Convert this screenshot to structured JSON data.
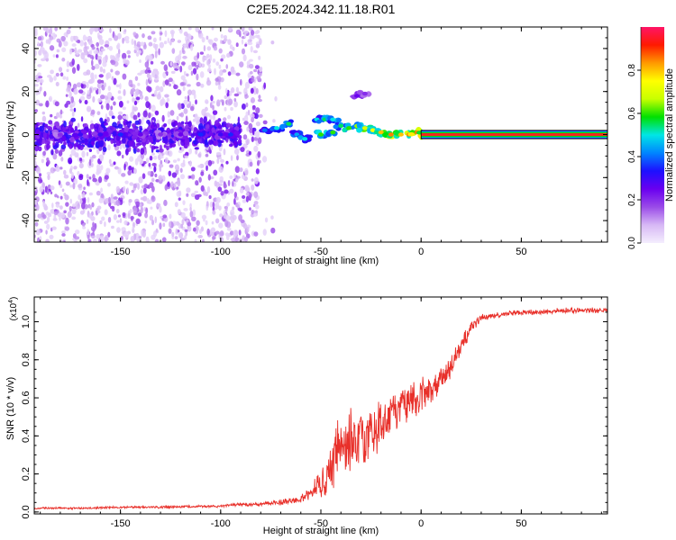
{
  "chart_data": [
    {
      "type": "heatmap",
      "title": "C2E5.2024.342.11.18.R01",
      "xlabel": "Height of straight line (km)",
      "ylabel": "Frequency (Hz)",
      "xlim": [
        -193,
        93
      ],
      "ylim": [
        -50,
        50
      ],
      "x_ticks": [
        -150,
        -100,
        -50,
        0,
        50
      ],
      "y_ticks": [
        -40,
        -20,
        0,
        20,
        40
      ],
      "colorbar": {
        "label": "Normalized spectral amplitude",
        "range": [
          0,
          1
        ],
        "ticks": [
          0.0,
          0.2,
          0.4,
          0.6,
          0.8
        ],
        "stops": [
          "#f4eefe",
          "#d7b8f5",
          "#9a4be8",
          "#6a00f0",
          "#1d10ff",
          "#0085ff",
          "#00e6e6",
          "#00e000",
          "#c8ff00",
          "#ffff00",
          "#ff9900",
          "#ff1a00",
          "#ff1466"
        ]
      },
      "line_band": {
        "x_start": 0,
        "x_end": 93,
        "y": 0,
        "half_width": 1.5,
        "colors": [
          "#ff2020",
          "#00d000",
          "#00c8e0",
          "#2020ff"
        ]
      },
      "noise_region": {
        "x_start": -193,
        "x_end": -80,
        "frequency_spread": 50
      },
      "ridge_points": [
        {
          "x": -180,
          "y": 0,
          "a": 0.2
        },
        {
          "x": -170,
          "y": 0,
          "a": 0.3
        },
        {
          "x": -160,
          "y": 0,
          "a": 0.3
        },
        {
          "x": -150,
          "y": 0,
          "a": 0.35
        },
        {
          "x": -140,
          "y": 0,
          "a": 0.25
        },
        {
          "x": -130,
          "y": 0,
          "a": 0.2
        },
        {
          "x": -120,
          "y": 0,
          "a": 0.25
        },
        {
          "x": -110,
          "y": 0,
          "a": 0.35
        },
        {
          "x": -100,
          "y": 0,
          "a": 0.3
        },
        {
          "x": -95,
          "y": 0,
          "a": 0.35
        },
        {
          "x": -78,
          "y": 2,
          "a": 0.4
        },
        {
          "x": -72,
          "y": 3,
          "a": 0.5
        },
        {
          "x": -66,
          "y": 5,
          "a": 0.55
        },
        {
          "x": -62,
          "y": 0,
          "a": 0.45
        },
        {
          "x": -58,
          "y": -2,
          "a": 0.5
        },
        {
          "x": -52,
          "y": 7,
          "a": 0.5
        },
        {
          "x": -48,
          "y": 7,
          "a": 0.55
        },
        {
          "x": -44,
          "y": 7,
          "a": 0.5
        },
        {
          "x": -50,
          "y": 0,
          "a": 0.6
        },
        {
          "x": -44,
          "y": 1,
          "a": 0.6
        },
        {
          "x": -40,
          "y": 4,
          "a": 0.55
        },
        {
          "x": -36,
          "y": 3,
          "a": 0.6
        },
        {
          "x": -32,
          "y": 4,
          "a": 0.65
        },
        {
          "x": -28,
          "y": 3,
          "a": 0.7
        },
        {
          "x": -24,
          "y": 2,
          "a": 0.75
        },
        {
          "x": -20,
          "y": 1,
          "a": 0.8
        },
        {
          "x": -15,
          "y": 0,
          "a": 0.85
        },
        {
          "x": -10,
          "y": 0,
          "a": 0.8
        },
        {
          "x": -6,
          "y": 0,
          "a": 0.85
        },
        {
          "x": -2,
          "y": 1,
          "a": 0.85
        },
        {
          "x": 2,
          "y": 0,
          "a": 0.9
        },
        {
          "x": -32,
          "y": 18,
          "a": 0.25
        },
        {
          "x": -28,
          "y": 19,
          "a": 0.2
        }
      ]
    },
    {
      "type": "line",
      "xlabel": "Height of straight line (km)",
      "ylabel": "SNR (10 * v/v)",
      "y_multiplier_label": "(x10",
      "y_multiplier_exp": "4",
      "y_multiplier_close": ")",
      "xlim": [
        -193,
        93
      ],
      "ylim": [
        -0.01,
        1.13
      ],
      "x_ticks": [
        -150,
        -100,
        -50,
        0,
        50
      ],
      "y_ticks": [
        0.0,
        0.2,
        0.4,
        0.6,
        0.8,
        1.0
      ],
      "series": [
        {
          "color": "#e8302a",
          "x": [
            -193,
            -170,
            -150,
            -130,
            -110,
            -100,
            -90,
            -80,
            -70,
            -60,
            -55,
            -50,
            -45,
            -42,
            -40,
            -38,
            -35,
            -32,
            -30,
            -28,
            -25,
            -22,
            -20,
            -18,
            -15,
            -12,
            -10,
            -8,
            -5,
            -2,
            0,
            3,
            5,
            8,
            10,
            13,
            15,
            18,
            20,
            23,
            25,
            28,
            30,
            40,
            50,
            60,
            70,
            80,
            93
          ],
          "y": [
            0.02,
            0.02,
            0.025,
            0.025,
            0.03,
            0.03,
            0.04,
            0.04,
            0.05,
            0.07,
            0.1,
            0.15,
            0.22,
            0.3,
            0.35,
            0.3,
            0.4,
            0.32,
            0.42,
            0.35,
            0.45,
            0.4,
            0.5,
            0.45,
            0.55,
            0.5,
            0.6,
            0.55,
            0.62,
            0.58,
            0.62,
            0.63,
            0.65,
            0.68,
            0.7,
            0.74,
            0.78,
            0.83,
            0.88,
            0.93,
            0.97,
            1.0,
            1.02,
            1.04,
            1.05,
            1.05,
            1.06,
            1.06,
            1.06
          ],
          "jitter": [
            0.005,
            0.006,
            0.006,
            0.006,
            0.006,
            0.007,
            0.008,
            0.01,
            0.015,
            0.02,
            0.04,
            0.08,
            0.12,
            0.18,
            0.2,
            0.18,
            0.2,
            0.17,
            0.18,
            0.16,
            0.15,
            0.15,
            0.13,
            0.12,
            0.12,
            0.11,
            0.1,
            0.1,
            0.1,
            0.1,
            0.09,
            0.09,
            0.09,
            0.08,
            0.08,
            0.07,
            0.07,
            0.06,
            0.05,
            0.04,
            0.03,
            0.025,
            0.02,
            0.015,
            0.015,
            0.015,
            0.015,
            0.015,
            0.015
          ]
        }
      ]
    }
  ]
}
